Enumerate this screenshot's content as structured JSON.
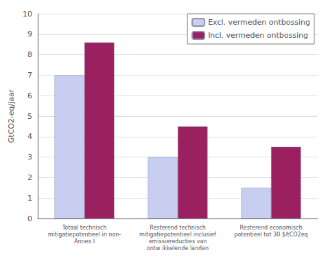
{
  "chart_data": {
    "type": "bar",
    "categories": [
      "Totaal technisch\nmitigatiepotentieel in non-\nAnnex I",
      "Resterend technisch\nmitigatiepotentieel inclusief\nemissiereducties van\nontw ikkelende landen",
      "Resterend economisch\npotentieel tot 30 $/tCO2eq"
    ],
    "series": [
      {
        "name": "Excl. vermeden ontbossing",
        "color": "#c8cef0",
        "values": [
          7.0,
          3.0,
          1.5
        ]
      },
      {
        "name": "Incl. vermeden ontbossing",
        "color": "#9b2060",
        "values": [
          8.6,
          4.5,
          3.5
        ]
      }
    ],
    "ylabel": "GtCO2-eq/jaar",
    "ylim": [
      0,
      10
    ],
    "yticks": [
      0,
      1,
      2,
      3,
      4,
      5,
      6,
      7,
      8,
      9,
      10
    ],
    "grid": true,
    "legend": "upper right"
  }
}
